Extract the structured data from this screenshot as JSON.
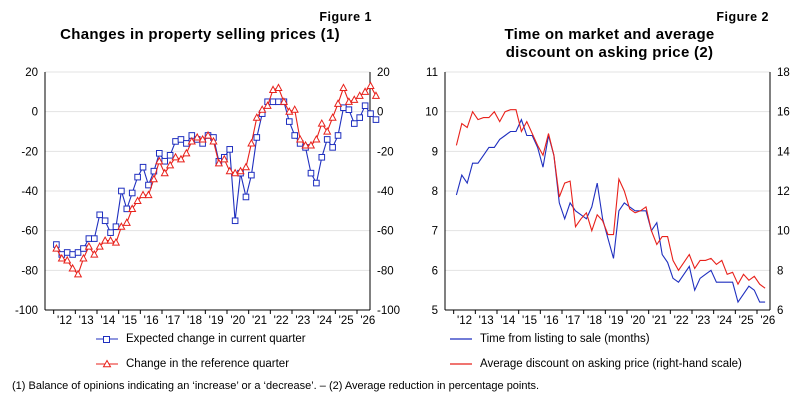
{
  "colors": {
    "blue": "#1f2fbf",
    "red": "#e8211b"
  },
  "figures": [
    {
      "label": "Figure 1",
      "title_lines": [
        "Changes in property selling prices (1)"
      ],
      "legend": [
        "Expected change in current quarter",
        "Change in the reference quarter"
      ]
    },
    {
      "label": "Figure 2",
      "title_lines": [
        "Time on market and average",
        "discount on asking price (2)"
      ],
      "legend": [
        "Time from listing to sale (months)",
        "Average discount on asking price (right-hand scale)"
      ]
    }
  ],
  "footnote": "(1) Balance of opinions indicating an ‘increase’ or a ‘decrease’. – (2) Average reduction in percentage points.",
  "chart_data": [
    {
      "type": "line",
      "title": "Changes in property selling prices (1)",
      "x_tick_labels": [
        "'12",
        "'13",
        "'14",
        "'15",
        "'16",
        "'17",
        "'18",
        "'19",
        "'20",
        "'21",
        "'22",
        "'23",
        "'24",
        "'25",
        "'26"
      ],
      "ylim": [
        -100,
        20
      ],
      "yticks": [
        -100,
        -80,
        -60,
        -40,
        -20,
        0,
        20
      ],
      "ytick_labels": [
        "-100",
        "-80",
        "-60",
        "-40",
        "-20",
        "0",
        "20"
      ],
      "y2lim": [
        -100,
        20
      ],
      "y2ticks": [
        -100,
        -80,
        -60,
        -40,
        -20,
        0,
        20
      ],
      "y2tick_labels": [
        "-100",
        "-80",
        "-60",
        "-40",
        "-20",
        "0",
        "20"
      ],
      "grid": "horizontal",
      "x_start": 2012.0,
      "x_step": 0.25,
      "series": [
        {
          "name": "Expected change in current quarter",
          "marker": "square",
          "color": "#1f2fbf",
          "values": [
            -67,
            -72,
            -71,
            -72,
            -71,
            -69,
            -64,
            -64,
            -52,
            -55,
            -61,
            -58,
            -40,
            -49,
            -41,
            -33,
            -28,
            -37,
            -30,
            -21,
            -25,
            -22,
            -15,
            -14,
            -16,
            -12,
            -14,
            -16,
            -12,
            -13,
            -25,
            -23,
            -19,
            -55,
            -31,
            -43,
            -32,
            -13,
            -1,
            5,
            5,
            5,
            5,
            -5,
            -12,
            -16,
            -18,
            -31,
            -36,
            -23,
            -14,
            -18,
            -12,
            2,
            1,
            -6,
            -3,
            3,
            -1,
            -4
          ]
        },
        {
          "name": "Change in the reference quarter",
          "marker": "triangle",
          "color": "#e8211b",
          "values": [
            -69,
            -74,
            -75,
            -79,
            -82,
            -74,
            -68,
            -72,
            -68,
            -65,
            -65,
            -66,
            -58,
            -56,
            -49,
            -45,
            -42,
            -42,
            -34,
            -25,
            -31,
            -27,
            -23,
            -24,
            -21,
            -15,
            -13,
            -14,
            -12,
            -15,
            -26,
            -24,
            -30,
            -31,
            -30,
            -28,
            -16,
            -3,
            1,
            3,
            11,
            12,
            5,
            0,
            1,
            -14,
            -17,
            -17,
            -14,
            -6,
            -10,
            -3,
            4,
            12,
            5,
            6,
            8,
            10,
            13,
            8
          ]
        }
      ]
    },
    {
      "type": "line",
      "title": "Time on market and average discount on asking price (2)",
      "x_tick_labels": [
        "'12",
        "'13",
        "'14",
        "'15",
        "'16",
        "'17",
        "'18",
        "'19",
        "'20",
        "'21",
        "'22",
        "'23",
        "'24",
        "'25",
        "'26"
      ],
      "ylim": [
        5,
        11
      ],
      "yticks": [
        5,
        6,
        7,
        8,
        9,
        10,
        11
      ],
      "ytick_labels": [
        "5",
        "6",
        "7",
        "8",
        "9",
        "10",
        "11"
      ],
      "y2lim": [
        6,
        18
      ],
      "y2ticks": [
        6,
        8,
        10,
        12,
        14,
        16,
        18
      ],
      "y2tick_labels": [
        "6",
        "8",
        "10",
        "12",
        "14",
        "16",
        "18"
      ],
      "grid": "horizontal",
      "x_start": 2012.0,
      "x_step": 0.25,
      "series": [
        {
          "name": "Time from listing to sale (months)",
          "axis": "left",
          "color": "#1f2fbf",
          "values": [
            7.9,
            8.4,
            8.2,
            8.7,
            8.7,
            8.9,
            9.1,
            9.1,
            9.3,
            9.4,
            9.5,
            9.5,
            9.8,
            9.4,
            9.4,
            9.1,
            8.6,
            9.4,
            8.9,
            7.7,
            7.3,
            7.7,
            7.5,
            7.4,
            7.3,
            7.6,
            8.2,
            7.3,
            6.8,
            6.3,
            7.5,
            7.7,
            7.6,
            7.5,
            7.5,
            7.5,
            7.0,
            7.2,
            6.4,
            6.2,
            5.8,
            5.7,
            5.9,
            6.1,
            5.5,
            5.8,
            5.9,
            6.0,
            5.7,
            5.7,
            5.7,
            5.7,
            5.2,
            5.4,
            5.6,
            5.5,
            5.2,
            5.2
          ]
        },
        {
          "name": "Average discount on asking price (right-hand scale)",
          "axis": "right",
          "color": "#e8211b",
          "values": [
            14.3,
            15.4,
            15.2,
            16.0,
            15.6,
            15.7,
            15.7,
            16.0,
            15.5,
            16.0,
            16.1,
            16.1,
            15.0,
            15.5,
            14.9,
            14.3,
            13.8,
            14.9,
            13.8,
            11.7,
            12.4,
            12.5,
            10.2,
            10.6,
            10.9,
            10.0,
            10.8,
            10.5,
            9.8,
            9.8,
            12.6,
            12.0,
            11.1,
            10.9,
            11.0,
            11.2,
            10.0,
            9.3,
            9.7,
            9.7,
            8.5,
            8.0,
            8.4,
            8.8,
            8.1,
            8.5,
            8.5,
            8.6,
            8.3,
            8.5,
            7.8,
            7.9,
            7.3,
            7.8,
            7.5,
            7.7,
            7.3,
            7.1
          ]
        }
      ]
    }
  ]
}
